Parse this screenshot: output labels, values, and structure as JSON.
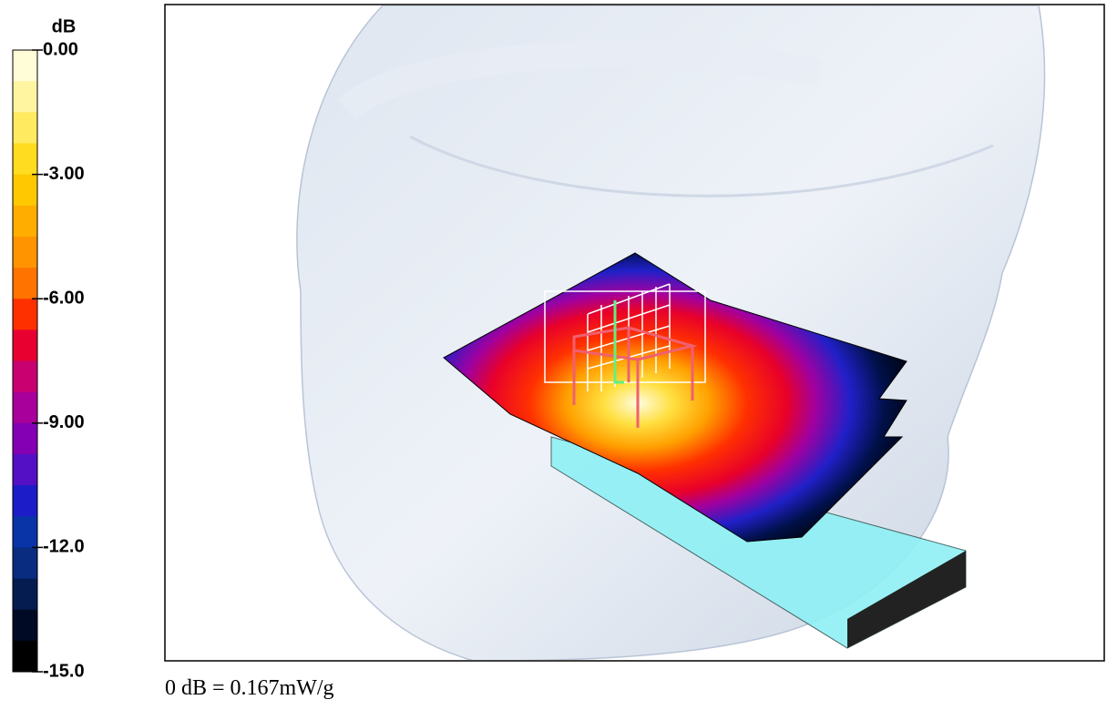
{
  "colorbar": {
    "unit": "dB",
    "ticks": [
      "0.00",
      "-3.00",
      "-6.00",
      "-9.00",
      "-12.0",
      "-15.0"
    ],
    "colors": [
      "#fffcd8",
      "#fff4a0",
      "#ffea60",
      "#ffdc20",
      "#ffc800",
      "#ffae00",
      "#ff9400",
      "#ff7400",
      "#ff3000",
      "#e80030",
      "#c80070",
      "#a8009a",
      "#8400b4",
      "#5410c4",
      "#1c1cc8",
      "#0834a8",
      "#0a2c80",
      "#041c50",
      "#000a24",
      "#000000"
    ]
  },
  "caption": "0 dB = 0.167mW/g"
}
